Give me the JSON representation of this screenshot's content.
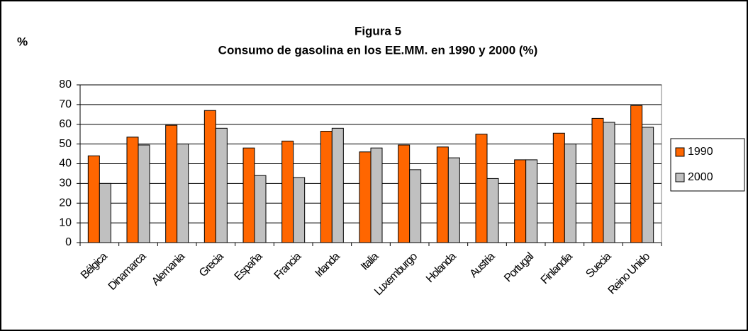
{
  "chart_data": {
    "type": "bar",
    "title": "Figura 5",
    "subtitle": "Consumo de gasolina en los EE.MM. en 1990 y 2000 (%)",
    "y_label": "%",
    "categories": [
      "Bélgica",
      "Dinamarca",
      "Alemania",
      "Grecia",
      "España",
      "Francia",
      "Irlanda",
      "Italia",
      "Luxemburgo",
      "Holanda",
      "Austria",
      "Portugal",
      "Finlandia",
      "Suecia",
      "Reino Unido"
    ],
    "series": [
      {
        "name": "1990",
        "color": "#ff6600",
        "values": [
          44,
          53.5,
          59.5,
          67,
          48,
          51.5,
          56.5,
          46,
          49.5,
          48.5,
          55,
          42,
          55.5,
          63,
          69.5
        ]
      },
      {
        "name": "2000",
        "color": "#c0c0c0",
        "values": [
          30,
          49.5,
          50,
          58,
          34,
          33,
          58,
          48,
          37,
          43,
          32.5,
          42,
          50,
          61,
          58.5
        ]
      }
    ],
    "ylim": [
      0,
      80
    ],
    "yticks": [
      0,
      10,
      20,
      30,
      40,
      50,
      60,
      70,
      80
    ],
    "grid": true,
    "legend": "right"
  }
}
